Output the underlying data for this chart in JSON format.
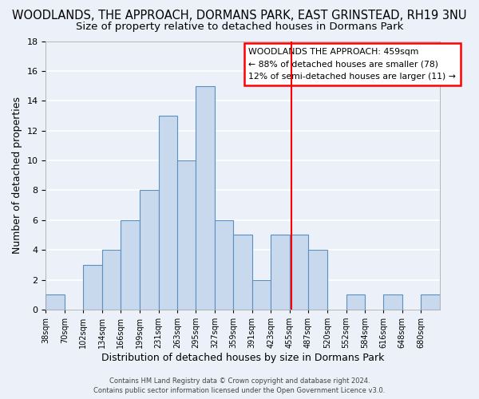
{
  "title": "WOODLANDS, THE APPROACH, DORMANS PARK, EAST GRINSTEAD, RH19 3NU",
  "subtitle": "Size of property relative to detached houses in Dormans Park",
  "xlabel": "Distribution of detached houses by size in Dormans Park",
  "ylabel": "Number of detached properties",
  "bar_edges": [
    38,
    70,
    102,
    134,
    166,
    199,
    231,
    263,
    295,
    327,
    359,
    391,
    423,
    455,
    487,
    520,
    552,
    584,
    616,
    648,
    680,
    712
  ],
  "bar_heights": [
    1,
    0,
    3,
    4,
    6,
    8,
    13,
    10,
    15,
    6,
    5,
    2,
    5,
    5,
    4,
    0,
    1,
    0,
    1,
    0,
    1
  ],
  "bar_color": "#c8d9ee",
  "bar_edgecolor": "#5a8fc2",
  "ylim": [
    0,
    18
  ],
  "yticks": [
    0,
    2,
    4,
    6,
    8,
    10,
    12,
    14,
    16,
    18
  ],
  "tick_labels": [
    "38sqm",
    "70sqm",
    "102sqm",
    "134sqm",
    "166sqm",
    "199sqm",
    "231sqm",
    "263sqm",
    "295sqm",
    "327sqm",
    "359sqm",
    "391sqm",
    "423sqm",
    "455sqm",
    "487sqm",
    "520sqm",
    "552sqm",
    "584sqm",
    "616sqm",
    "648sqm",
    "680sqm"
  ],
  "tick_positions": [
    38,
    70,
    102,
    134,
    166,
    199,
    231,
    263,
    295,
    327,
    359,
    391,
    423,
    455,
    487,
    520,
    552,
    584,
    616,
    648,
    680
  ],
  "redline_x": 459,
  "annotation_title": "WOODLANDS THE APPROACH: 459sqm",
  "annotation_line1": "← 88% of detached houses are smaller (78)",
  "annotation_line2": "12% of semi-detached houses are larger (11) →",
  "footer_line1": "Contains HM Land Registry data © Crown copyright and database right 2024.",
  "footer_line2": "Contains public sector information licensed under the Open Government Licence v3.0.",
  "bg_color": "#ecf1f9",
  "grid_color": "#ffffff",
  "title_fontsize": 10.5,
  "subtitle_fontsize": 9.5,
  "axis_label_fontsize": 9
}
